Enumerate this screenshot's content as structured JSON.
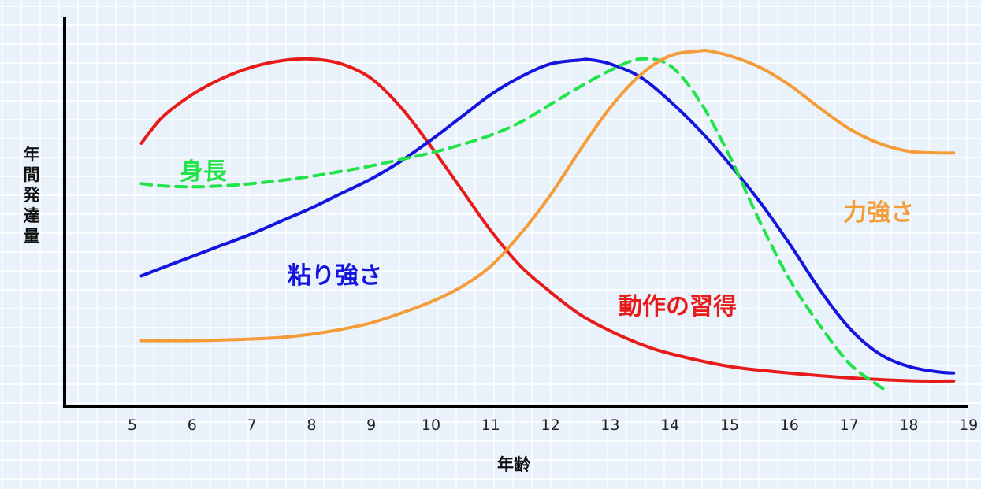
{
  "chart_data": {
    "type": "line",
    "xlabel": "年齢",
    "ylabel": "年間発達量",
    "xlim": [
      4,
      19
    ],
    "ylim": [
      0,
      100
    ],
    "x_ticks": [
      "5",
      "6",
      "7",
      "8",
      "9",
      "10",
      "11",
      "12",
      "13",
      "14",
      "15",
      "16",
      "17",
      "18",
      "19"
    ],
    "grid": true,
    "background": "#e9f2fa",
    "grid_color": "#ffffff",
    "series": [
      {
        "name": "動作の習得",
        "color": "#e81b1b",
        "dashed": false,
        "x": [
          5.15,
          5.5,
          6,
          6.5,
          7,
          7.5,
          8,
          8.5,
          9,
          9.5,
          10,
          10.5,
          11,
          11.5,
          12,
          12.5,
          13,
          13.5,
          14,
          15,
          16,
          17,
          18,
          18.75
        ],
        "y": [
          74,
          82,
          89,
          94,
          97.5,
          99.5,
          100,
          98.5,
          94,
          85,
          73,
          60,
          47,
          36,
          28,
          21,
          16,
          12,
          9,
          5,
          3,
          1.5,
          0.6,
          0.5
        ]
      },
      {
        "name": "粘り強さ",
        "color": "#1414dd",
        "dashed": false,
        "x": [
          5.15,
          5.5,
          6,
          6.5,
          7,
          7.5,
          8,
          8.5,
          9,
          9.5,
          10,
          10.5,
          11,
          11.5,
          12,
          12.5,
          12.65,
          13,
          13.5,
          14,
          14.5,
          15,
          15.5,
          16,
          16.5,
          17,
          17.5,
          18,
          18.5,
          18.75
        ],
        "y": [
          33,
          35.5,
          39,
          42.5,
          46,
          50,
          54,
          58.5,
          63,
          68.5,
          75,
          82,
          89,
          94.5,
          98.5,
          99.7,
          99.8,
          98.5,
          94.5,
          87,
          78,
          67.5,
          56,
          43,
          29,
          17,
          9,
          5,
          3.3,
          3
        ]
      },
      {
        "name": "身長",
        "color": "#22e34a",
        "dashed": true,
        "x": [
          5.15,
          5.5,
          6,
          6.5,
          7,
          7.5,
          8,
          8.5,
          9,
          9.5,
          10,
          10.5,
          11,
          11.5,
          12,
          12.5,
          13,
          13.5,
          14,
          14.5,
          15,
          15.5,
          16,
          16.5,
          17,
          17.5,
          17.6
        ],
        "y": [
          61.5,
          60.8,
          60.5,
          60.8,
          61.5,
          62.5,
          63.8,
          65.3,
          67,
          69,
          71,
          73.5,
          76.5,
          80.5,
          86,
          91.5,
          96.5,
          100,
          98,
          87,
          70,
          50,
          32,
          18,
          6,
          -1,
          -2
        ]
      },
      {
        "name": "力強さ",
        "color": "#f39c38",
        "dashed": false,
        "x": [
          5.15,
          5.5,
          6,
          6.5,
          7,
          7.5,
          8,
          8.5,
          9,
          9.5,
          10,
          10.5,
          11,
          11.5,
          12,
          12.5,
          13,
          13.5,
          14,
          14.5,
          14.65,
          15,
          15.5,
          16,
          16.5,
          17,
          17.5,
          18,
          18.5,
          18.75
        ],
        "y": [
          13,
          13,
          13,
          13.2,
          13.5,
          14,
          15,
          16.5,
          18.5,
          21.5,
          25,
          29.5,
          36,
          46,
          58,
          72,
          85,
          95,
          101,
          102.5,
          102.5,
          101,
          97.5,
          92,
          85,
          78.5,
          74,
          71.5,
          71,
          71
        ]
      }
    ]
  }
}
